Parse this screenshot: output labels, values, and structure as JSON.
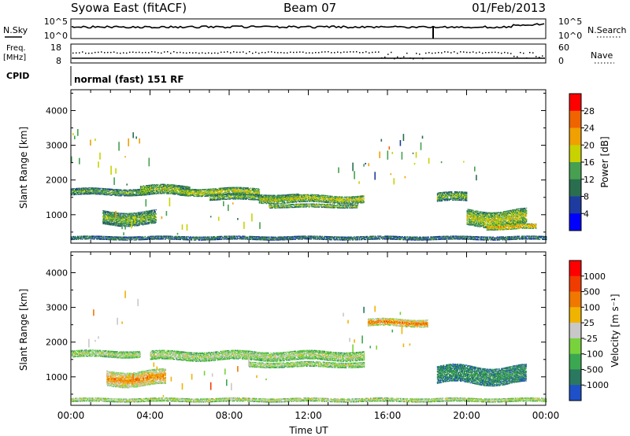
{
  "header": {
    "station": "Syowa East (fitACF)",
    "beam": "Beam 07",
    "date": "01/Feb/2013"
  },
  "status_panels": {
    "nsky_label": "N.Sky",
    "nsky_ticks": [
      "10^5",
      "10^0"
    ],
    "nsearch_label": "N.Search",
    "nsearch_ticks": [
      "10^5",
      "10^0"
    ],
    "freq_label": "Freq.",
    "freq_unit": "[MHz]",
    "freq_ticks": [
      "18",
      "8"
    ],
    "nave_label": "Nave",
    "nave_ticks": [
      "60",
      "0"
    ],
    "cpid_label": "CPID",
    "cpid_text": "normal (fast) 151 RF"
  },
  "chart_data": [
    {
      "type": "heatmap",
      "name": "power-panel",
      "ylabel": "Slant Range [km]",
      "yticks": [
        1000,
        2000,
        3000,
        4000
      ],
      "ylim": [
        180,
        4600
      ],
      "xlim": [
        0,
        24
      ],
      "colorbar_label": "Power [dB]",
      "colorbar_ticks": [
        "28",
        "24",
        "20",
        "16",
        "12",
        "8",
        "4"
      ],
      "colors": [
        "#0000ff",
        "#1e3ca0",
        "#2a6e50",
        "#46a050",
        "#c8d200",
        "#f0a000",
        "#f06400",
        "#ff0000"
      ],
      "bands": [
        {
          "start": 0.0,
          "end": 4.0,
          "center": 1650,
          "width": 180,
          "level": 0.45
        },
        {
          "start": 1.6,
          "end": 4.3,
          "center": 900,
          "width": 380,
          "level": 0.5
        },
        {
          "start": 3.5,
          "end": 6.0,
          "center": 1700,
          "width": 280,
          "level": 0.55
        },
        {
          "start": 5.5,
          "end": 9.5,
          "center": 1650,
          "width": 200,
          "level": 0.6
        },
        {
          "start": 7.0,
          "end": 11.5,
          "center": 1500,
          "width": 160,
          "level": 0.5
        },
        {
          "start": 9.5,
          "end": 14.8,
          "center": 1450,
          "width": 220,
          "level": 0.6
        },
        {
          "start": 10.0,
          "end": 14.5,
          "center": 1250,
          "width": 100,
          "level": 0.55
        },
        {
          "start": 18.5,
          "end": 20.0,
          "center": 1500,
          "width": 250,
          "level": 0.5
        },
        {
          "start": 20.0,
          "end": 23.0,
          "center": 900,
          "width": 450,
          "level": 0.6
        },
        {
          "start": 21.0,
          "end": 23.5,
          "center": 650,
          "width": 150,
          "level": 0.75
        },
        {
          "start": 0.0,
          "end": 24.0,
          "center": 320,
          "width": 90,
          "level": 0.35
        }
      ],
      "scatter": [
        {
          "start": 0.0,
          "end": 4.0,
          "low": 1800,
          "high": 3300,
          "density": 0.35
        },
        {
          "start": 13.5,
          "end": 17.5,
          "low": 1700,
          "high": 3000,
          "density": 0.35
        },
        {
          "start": 15.5,
          "end": 20.5,
          "low": 1900,
          "high": 3200,
          "density": 0.3
        },
        {
          "start": 2.0,
          "end": 10.0,
          "low": 400,
          "high": 1300,
          "density": 0.2
        }
      ]
    },
    {
      "type": "heatmap",
      "name": "velocity-panel",
      "ylabel": "Slant Range [km]",
      "yticks": [
        1000,
        2000,
        3000,
        4000
      ],
      "ylim": [
        180,
        4600
      ],
      "xlim": [
        0,
        24
      ],
      "xticks": [
        "00:00",
        "04:00",
        "08:00",
        "12:00",
        "16:00",
        "20:00",
        "00:00"
      ],
      "xlabel": "Time UT",
      "colorbar_label": "Velocity [m s⁻¹]",
      "colorbar_ticks": [
        "1000",
        "500",
        "100",
        "25",
        "-25",
        "-100",
        "-500",
        "-1000"
      ],
      "colors": [
        "#1e50c8",
        "#2a7860",
        "#3aa850",
        "#78d23c",
        "#c8c8c8",
        "#f0b400",
        "#f07800",
        "#f03c00",
        "#ff0000"
      ],
      "bands": [
        {
          "start": 0.0,
          "end": 3.5,
          "center": 1650,
          "width": 180,
          "level": 0.5
        },
        {
          "start": 1.8,
          "end": 4.8,
          "center": 950,
          "width": 420,
          "level": 0.75
        },
        {
          "start": 4.0,
          "end": 14.8,
          "center": 1600,
          "width": 250,
          "level": 0.5
        },
        {
          "start": 9.0,
          "end": 14.8,
          "center": 1350,
          "width": 150,
          "level": 0.5
        },
        {
          "start": 15.0,
          "end": 18.0,
          "center": 2550,
          "width": 200,
          "level": 0.8
        },
        {
          "start": 18.5,
          "end": 23.0,
          "center": 1050,
          "width": 500,
          "level": 0.2
        },
        {
          "start": 0.0,
          "end": 24.0,
          "center": 330,
          "width": 100,
          "level": 0.55
        }
      ],
      "scatter": [
        {
          "start": 0.0,
          "end": 4.0,
          "low": 1800,
          "high": 3300,
          "density": 0.25
        },
        {
          "start": 13.5,
          "end": 17.5,
          "low": 1700,
          "high": 3000,
          "density": 0.3
        },
        {
          "start": 2.0,
          "end": 10.0,
          "low": 400,
          "high": 1300,
          "density": 0.15
        }
      ]
    }
  ]
}
